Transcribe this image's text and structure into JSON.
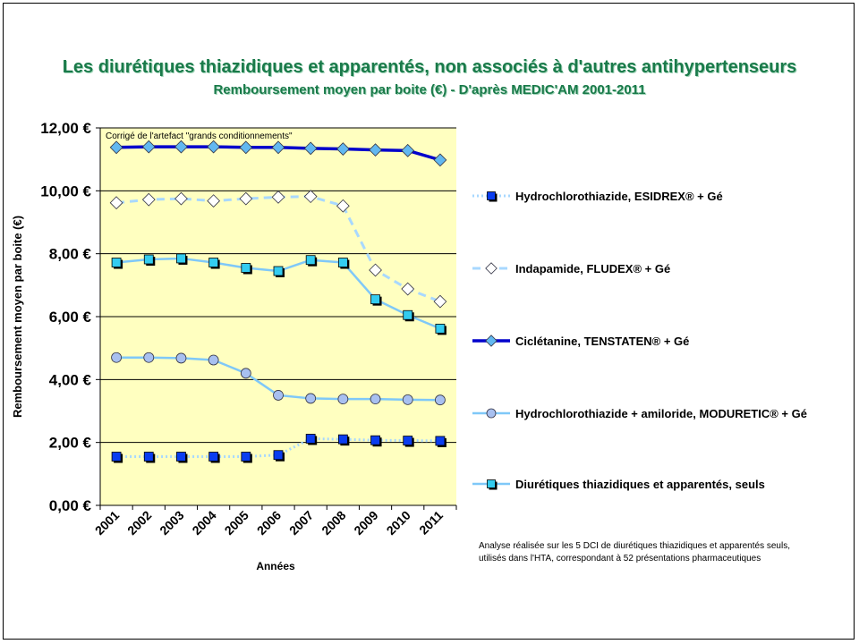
{
  "chart_data": {
    "type": "line",
    "title": "Les diurétiques thiazidiques et apparentés, non associés à d'autres antihypertenseurs",
    "subtitle": "Remboursement moyen par boite (€) - D'après MEDIC'AM 2001-2011",
    "xlabel": "Années",
    "ylabel": "Remboursement moyen par boite (€)",
    "categories": [
      "2001",
      "2002",
      "2003",
      "2004",
      "2005",
      "2006",
      "2007",
      "2008",
      "2009",
      "2010",
      "2011"
    ],
    "ylim": [
      0,
      12
    ],
    "y_ticks": [
      "0,00 €",
      "2,00 €",
      "4,00 €",
      "6,00 €",
      "8,00 €",
      "10,00 €",
      "12,00 €"
    ],
    "grid": true,
    "legend_position": "right",
    "annotation": "Corrigé de l'artefact \"grands conditionnements\"",
    "plot_background": "#ffffc0",
    "series": [
      {
        "name": "Hydrochlorothiazide, ESIDREX® + Gé",
        "values": [
          1.55,
          1.55,
          1.55,
          1.55,
          1.55,
          1.6,
          2.12,
          2.1,
          2.07,
          2.06,
          2.05
        ],
        "color": "#0a3df0",
        "line_color": "#a8d8ff",
        "line_style": "dotted",
        "marker": "square"
      },
      {
        "name": "Indapamide, FLUDEX® + Gé",
        "values": [
          9.62,
          9.72,
          9.75,
          9.68,
          9.75,
          9.8,
          9.82,
          9.52,
          7.48,
          6.88,
          6.48
        ],
        "color": "#ffffff",
        "line_color": "#a8d8ff",
        "line_style": "dashed",
        "marker": "diamond"
      },
      {
        "name": "Ciclétanine, TENSTATEN® + Gé",
        "values": [
          11.38,
          11.4,
          11.4,
          11.4,
          11.38,
          11.38,
          11.35,
          11.33,
          11.3,
          11.28,
          10.98
        ],
        "color": "#62b8f0",
        "line_color": "#0000cc",
        "line_style": "solid",
        "marker": "diamond"
      },
      {
        "name": "Hydrochlorothiazide + amiloride, MODURETIC® + Gé",
        "values": [
          4.7,
          4.7,
          4.68,
          4.62,
          4.2,
          3.5,
          3.4,
          3.38,
          3.38,
          3.36,
          3.35
        ],
        "color": "#a8c0f0",
        "line_color": "#7fc8f8",
        "line_style": "solid",
        "marker": "circle"
      },
      {
        "name": "Diurétiques thiazidiques et apparentés, seuls",
        "values": [
          7.72,
          7.82,
          7.85,
          7.72,
          7.55,
          7.45,
          7.8,
          7.72,
          6.55,
          6.05,
          5.62
        ],
        "color": "#33ccf0",
        "line_color": "#7fc8f8",
        "line_style": "solid",
        "marker": "square"
      }
    ]
  },
  "footnote": {
    "line1": "Analyse réalisée sur les 5 DCI de diurétiques thiazidiques et apparentés seuls,",
    "line2": "utilisés dans l'HTA, correspondant à 52 présentations pharmaceutiques"
  }
}
